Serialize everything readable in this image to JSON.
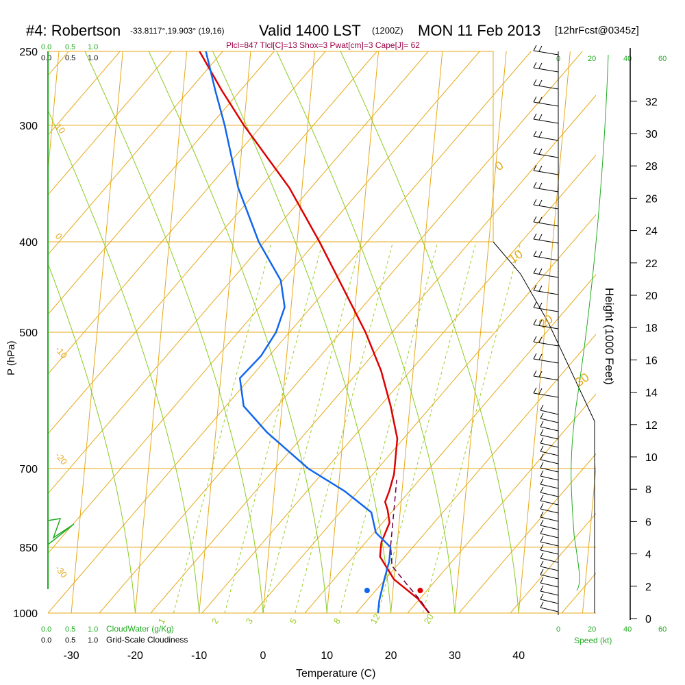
{
  "header": {
    "station": "#4: Robertson",
    "coords": "-33.8117°,19.903° (19,16)",
    "valid": "Valid 1400 LST",
    "utc": "(1200Z)",
    "date": "MON 11 Feb 2013",
    "forecast": "[12hrFcst@0345z]"
  },
  "indices": "Plcl=847 Tlcl[C]=13 Shox=3 Pwat[cm]=3 Cape[J]= 62",
  "scales": {
    "cloudwater_ticks": [
      "0.0",
      "0.5",
      "1.0"
    ],
    "cloudiness_ticks": [
      "0.0",
      "0.5",
      "1.0"
    ],
    "cloudwater_label": "CloudWater (g/Kg)",
    "cloudiness_label": "Grid-Scale Cloudiness",
    "speed_ticks": [
      "0",
      "20",
      "40",
      "60"
    ],
    "speed_label": "Speed (kt)"
  },
  "colors": {
    "temperature": "#dd0000",
    "dewpoint": "#1166ee",
    "parcel": "#660044",
    "isotherm_isobar": "#e6a817",
    "mixing_ratio": "#99cc22",
    "adiabat": "#88cc22",
    "speed_profile": "#22aa22"
  },
  "chart_data": {
    "type": "line",
    "title": "#4: Robertson",
    "xlabel": "Temperature (C)",
    "ylabel": "P (hPa)",
    "y2label": "Height (1000 Feet)",
    "pressure_ticks": [
      "250",
      "300",
      "400",
      "500",
      "700",
      "850",
      "1000"
    ],
    "temperature_ticks": [
      "-30",
      "-20",
      "-10",
      "0",
      "10",
      "20",
      "30",
      "40"
    ],
    "height_ticks": [
      "0",
      "2",
      "4",
      "6",
      "8",
      "10",
      "12",
      "14",
      "16",
      "18",
      "20",
      "22",
      "24",
      "26",
      "28",
      "30",
      "32"
    ],
    "dry_adiabat_labels": [
      "10",
      "0",
      "-10",
      "-20",
      "-30"
    ],
    "moist_adiabat_labels": [
      "0",
      "10",
      "20",
      "30"
    ],
    "mixing_ratio_labels": [
      "1",
      "2",
      "3",
      "5",
      "8",
      "12",
      "20"
    ],
    "series": [
      {
        "kind": "temperature",
        "points": [
          [
            1000,
            26
          ],
          [
            965,
            24
          ],
          [
            920,
            20
          ],
          [
            870,
            17.5
          ],
          [
            840,
            17.5
          ],
          [
            800,
            18.5
          ],
          [
            775,
            18
          ],
          [
            760,
            17.5
          ],
          [
            740,
            18
          ],
          [
            710,
            18.5
          ],
          [
            700,
            18.5
          ],
          [
            650,
            18.5
          ],
          [
            600,
            17
          ],
          [
            550,
            15
          ],
          [
            500,
            12
          ],
          [
            450,
            8
          ],
          [
            400,
            3.5
          ],
          [
            350,
            -2
          ],
          [
            300,
            -10
          ],
          [
            275,
            -14
          ],
          [
            250,
            -18
          ]
        ]
      },
      {
        "kind": "dewpoint",
        "points": [
          [
            1000,
            18
          ],
          [
            970,
            18
          ],
          [
            920,
            18.5
          ],
          [
            880,
            19
          ],
          [
            850,
            19
          ],
          [
            820,
            16.5
          ],
          [
            780,
            15.5
          ],
          [
            740,
            11
          ],
          [
            700,
            5
          ],
          [
            640,
            -2
          ],
          [
            600,
            -6
          ],
          [
            560,
            -7
          ],
          [
            530,
            -4
          ],
          [
            500,
            -2
          ],
          [
            470,
            -1
          ],
          [
            440,
            -2
          ],
          [
            400,
            -6
          ],
          [
            350,
            -10
          ],
          [
            300,
            -13
          ],
          [
            275,
            -15
          ],
          [
            250,
            -17
          ]
        ]
      },
      {
        "kind": "parcel",
        "points": [
          [
            1000,
            26
          ],
          [
            970,
            24.5
          ],
          [
            930,
            22
          ],
          [
            890,
            19.5
          ],
          [
            847,
            19
          ],
          [
            800,
            19
          ],
          [
            760,
            19
          ],
          [
            720,
            19
          ]
        ]
      }
    ],
    "surface_dewpoint": 19.5,
    "surface_temperature": 26.2,
    "wind_barbs": {
      "units": "kt",
      "note": "light winds, direction not readable"
    },
    "ylim": [
      250,
      1000
    ],
    "xlim": [
      -30,
      45
    ]
  }
}
